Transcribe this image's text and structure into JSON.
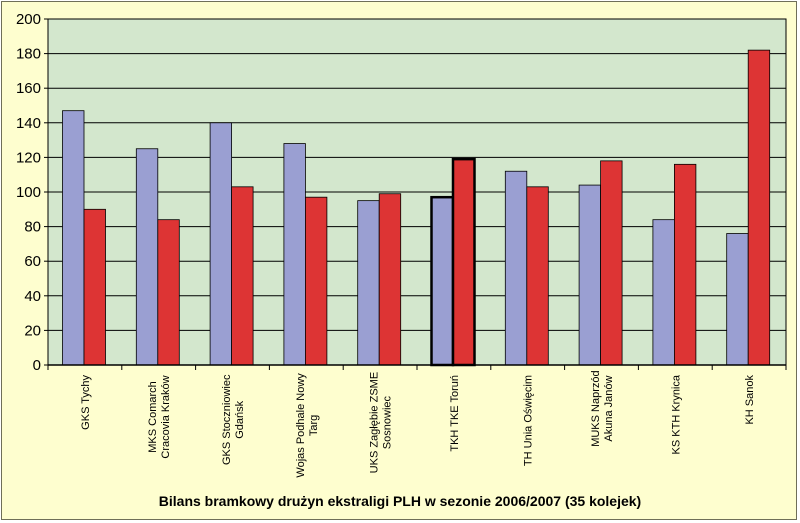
{
  "chart_data": {
    "type": "bar",
    "title": "Bilans bramkowy drużyn ekstraligi PLH w sezonie 2006/2007 (35 kolejek)",
    "xlabel": "",
    "ylabel": "",
    "ylim": [
      0,
      200
    ],
    "yticks": [
      "0",
      "20",
      "40",
      "60",
      "80",
      "100",
      "120",
      "140",
      "160",
      "180",
      "200"
    ],
    "grid": true,
    "legend": "none",
    "categories": [
      [
        "GKS Tychy"
      ],
      [
        "MKS Comarch",
        "Cracovia Kraków"
      ],
      [
        "GKS Stoczniowiec",
        "Gdańsk"
      ],
      [
        "Wojas Podhale Nowy",
        "Targ"
      ],
      [
        "UKS Zagłębie ZSME",
        "Sosnowiec"
      ],
      [
        "TKH TKE Toruń"
      ],
      [
        "TH Unia Oświęcim"
      ],
      [
        "MUKS Naprzód",
        "Akuna Janów"
      ],
      [
        "KS KTH Krynica"
      ],
      [
        "KH Sanok"
      ]
    ],
    "highlighted_category": 5,
    "series": [
      {
        "values": [
          147,
          125,
          140,
          128,
          95,
          97,
          112,
          104,
          84,
          76
        ]
      },
      {
        "values": [
          90,
          84,
          103,
          97,
          99,
          119,
          103,
          118,
          116,
          182
        ]
      }
    ],
    "colors": {
      "plot_background": "#d3e7cd",
      "frame_background": "#fefecf",
      "series": [
        "#9a9fd2",
        "#dd3434"
      ],
      "grid": "#000000"
    }
  }
}
